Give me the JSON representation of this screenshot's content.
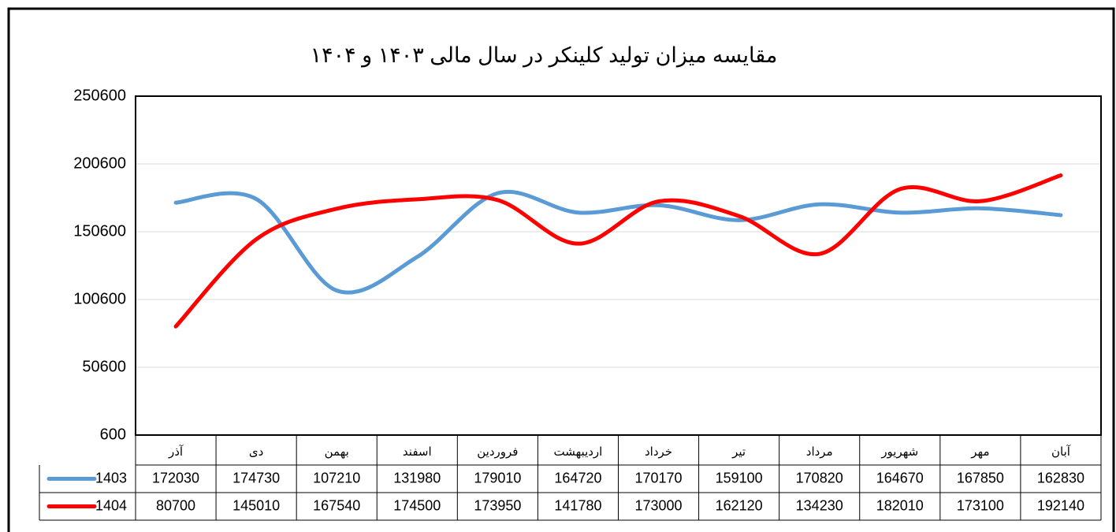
{
  "chart_data": {
    "type": "line",
    "title": "مقایسه میزان تولید کلینکر در سال مالی ۱۴۰۳ و ۱۴۰۴",
    "categories": [
      "آذر",
      "دی",
      "بهمن",
      "اسفند",
      "فروردین",
      "اردیبهشت",
      "خرداد",
      "تیر",
      "مرداد",
      "شهریور",
      "مهر",
      "آبان"
    ],
    "series": [
      {
        "name": "1403",
        "color": "#5b9bd5",
        "values": [
          172030,
          174730,
          107210,
          131980,
          179010,
          164720,
          170170,
          159100,
          170820,
          164670,
          167850,
          162830
        ]
      },
      {
        "name": "1404",
        "color": "#ff0000",
        "values": [
          80700,
          145010,
          167540,
          174500,
          173950,
          141780,
          173000,
          162120,
          134230,
          182010,
          173100,
          192140
        ]
      }
    ],
    "ylim": [
      600,
      250600
    ],
    "yticks": [
      600,
      50600,
      100600,
      150600,
      200600,
      250600
    ],
    "grid": true
  }
}
